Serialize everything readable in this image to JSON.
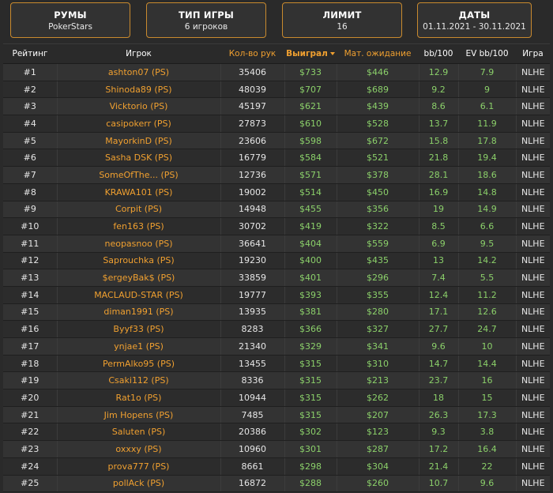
{
  "filters": [
    {
      "title": "РУМЫ",
      "value": "PokerStars"
    },
    {
      "title": "ТИП ИГРЫ",
      "value": "6 игроков"
    },
    {
      "title": "ЛИМИТ",
      "value": "16"
    },
    {
      "title": "ДАТЫ",
      "value": "01.11.2021 - 30.11.2021"
    }
  ],
  "table": {
    "headers": {
      "rank": "Рейтинг",
      "player": "Игрок",
      "hands": "Кол-во рук",
      "won": "Выиграл",
      "ev": "Мат. ожидание",
      "bb100": "bb/100",
      "evbb100": "EV bb/100",
      "game": "Игра"
    },
    "rows": [
      {
        "rank": "#1",
        "player": "ashton07 (PS)",
        "hands": "35406",
        "won": "$733",
        "ev": "$446",
        "bb100": "12.9",
        "evbb100": "7.9",
        "game": "NLHE"
      },
      {
        "rank": "#2",
        "player": "Shinoda89 (PS)",
        "hands": "48039",
        "won": "$707",
        "ev": "$689",
        "bb100": "9.2",
        "evbb100": "9",
        "game": "NLHE"
      },
      {
        "rank": "#3",
        "player": "Vicktorio (PS)",
        "hands": "45197",
        "won": "$621",
        "ev": "$439",
        "bb100": "8.6",
        "evbb100": "6.1",
        "game": "NLHE"
      },
      {
        "rank": "#4",
        "player": "casipokerr (PS)",
        "hands": "27873",
        "won": "$610",
        "ev": "$528",
        "bb100": "13.7",
        "evbb100": "11.9",
        "game": "NLHE"
      },
      {
        "rank": "#5",
        "player": "MayorkinD (PS)",
        "hands": "23606",
        "won": "$598",
        "ev": "$672",
        "bb100": "15.8",
        "evbb100": "17.8",
        "game": "NLHE"
      },
      {
        "rank": "#6",
        "player": "Sasha DSK (PS)",
        "hands": "16779",
        "won": "$584",
        "ev": "$521",
        "bb100": "21.8",
        "evbb100": "19.4",
        "game": "NLHE"
      },
      {
        "rank": "#7",
        "player": "SomeOfThe... (PS)",
        "hands": "12736",
        "won": "$571",
        "ev": "$378",
        "bb100": "28.1",
        "evbb100": "18.6",
        "game": "NLHE"
      },
      {
        "rank": "#8",
        "player": "KRAWA101 (PS)",
        "hands": "19002",
        "won": "$514",
        "ev": "$450",
        "bb100": "16.9",
        "evbb100": "14.8",
        "game": "NLHE"
      },
      {
        "rank": "#9",
        "player": "Corpit (PS)",
        "hands": "14948",
        "won": "$455",
        "ev": "$356",
        "bb100": "19",
        "evbb100": "14.9",
        "game": "NLHE"
      },
      {
        "rank": "#10",
        "player": "fen163 (PS)",
        "hands": "30702",
        "won": "$419",
        "ev": "$322",
        "bb100": "8.5",
        "evbb100": "6.6",
        "game": "NLHE"
      },
      {
        "rank": "#11",
        "player": "neopasnoo (PS)",
        "hands": "36641",
        "won": "$404",
        "ev": "$559",
        "bb100": "6.9",
        "evbb100": "9.5",
        "game": "NLHE"
      },
      {
        "rank": "#12",
        "player": "Saprouchka (PS)",
        "hands": "19230",
        "won": "$400",
        "ev": "$435",
        "bb100": "13",
        "evbb100": "14.2",
        "game": "NLHE"
      },
      {
        "rank": "#13",
        "player": "$ergeyBak$ (PS)",
        "hands": "33859",
        "won": "$401",
        "ev": "$296",
        "bb100": "7.4",
        "evbb100": "5.5",
        "game": "NLHE"
      },
      {
        "rank": "#14",
        "player": "MACLAUD-STAR (PS)",
        "hands": "19777",
        "won": "$393",
        "ev": "$355",
        "bb100": "12.4",
        "evbb100": "11.2",
        "game": "NLHE"
      },
      {
        "rank": "#15",
        "player": "diman1991 (PS)",
        "hands": "13935",
        "won": "$381",
        "ev": "$280",
        "bb100": "17.1",
        "evbb100": "12.6",
        "game": "NLHE"
      },
      {
        "rank": "#16",
        "player": "Byyf33 (PS)",
        "hands": "8283",
        "won": "$366",
        "ev": "$327",
        "bb100": "27.7",
        "evbb100": "24.7",
        "game": "NLHE"
      },
      {
        "rank": "#17",
        "player": "ynjae1 (PS)",
        "hands": "21340",
        "won": "$329",
        "ev": "$341",
        "bb100": "9.6",
        "evbb100": "10",
        "game": "NLHE"
      },
      {
        "rank": "#18",
        "player": "PermAlko95 (PS)",
        "hands": "13455",
        "won": "$315",
        "ev": "$310",
        "bb100": "14.7",
        "evbb100": "14.4",
        "game": "NLHE"
      },
      {
        "rank": "#19",
        "player": "Csaki112 (PS)",
        "hands": "8336",
        "won": "$315",
        "ev": "$213",
        "bb100": "23.7",
        "evbb100": "16",
        "game": "NLHE"
      },
      {
        "rank": "#20",
        "player": "Rat1o (PS)",
        "hands": "10944",
        "won": "$315",
        "ev": "$262",
        "bb100": "18",
        "evbb100": "15",
        "game": "NLHE"
      },
      {
        "rank": "#21",
        "player": "Jim Hopens (PS)",
        "hands": "7485",
        "won": "$315",
        "ev": "$207",
        "bb100": "26.3",
        "evbb100": "17.3",
        "game": "NLHE"
      },
      {
        "rank": "#22",
        "player": "Saluten (PS)",
        "hands": "20386",
        "won": "$302",
        "ev": "$123",
        "bb100": "9.3",
        "evbb100": "3.8",
        "game": "NLHE"
      },
      {
        "rank": "#23",
        "player": "oxxxy (PS)",
        "hands": "10960",
        "won": "$301",
        "ev": "$287",
        "bb100": "17.2",
        "evbb100": "16.4",
        "game": "NLHE"
      },
      {
        "rank": "#24",
        "player": "prova777 (PS)",
        "hands": "8661",
        "won": "$298",
        "ev": "$304",
        "bb100": "21.4",
        "evbb100": "22",
        "game": "NLHE"
      },
      {
        "rank": "#25",
        "player": "pollAck (PS)",
        "hands": "16872",
        "won": "$288",
        "ev": "$260",
        "bb100": "10.7",
        "evbb100": "9.6",
        "game": "NLHE"
      }
    ]
  }
}
